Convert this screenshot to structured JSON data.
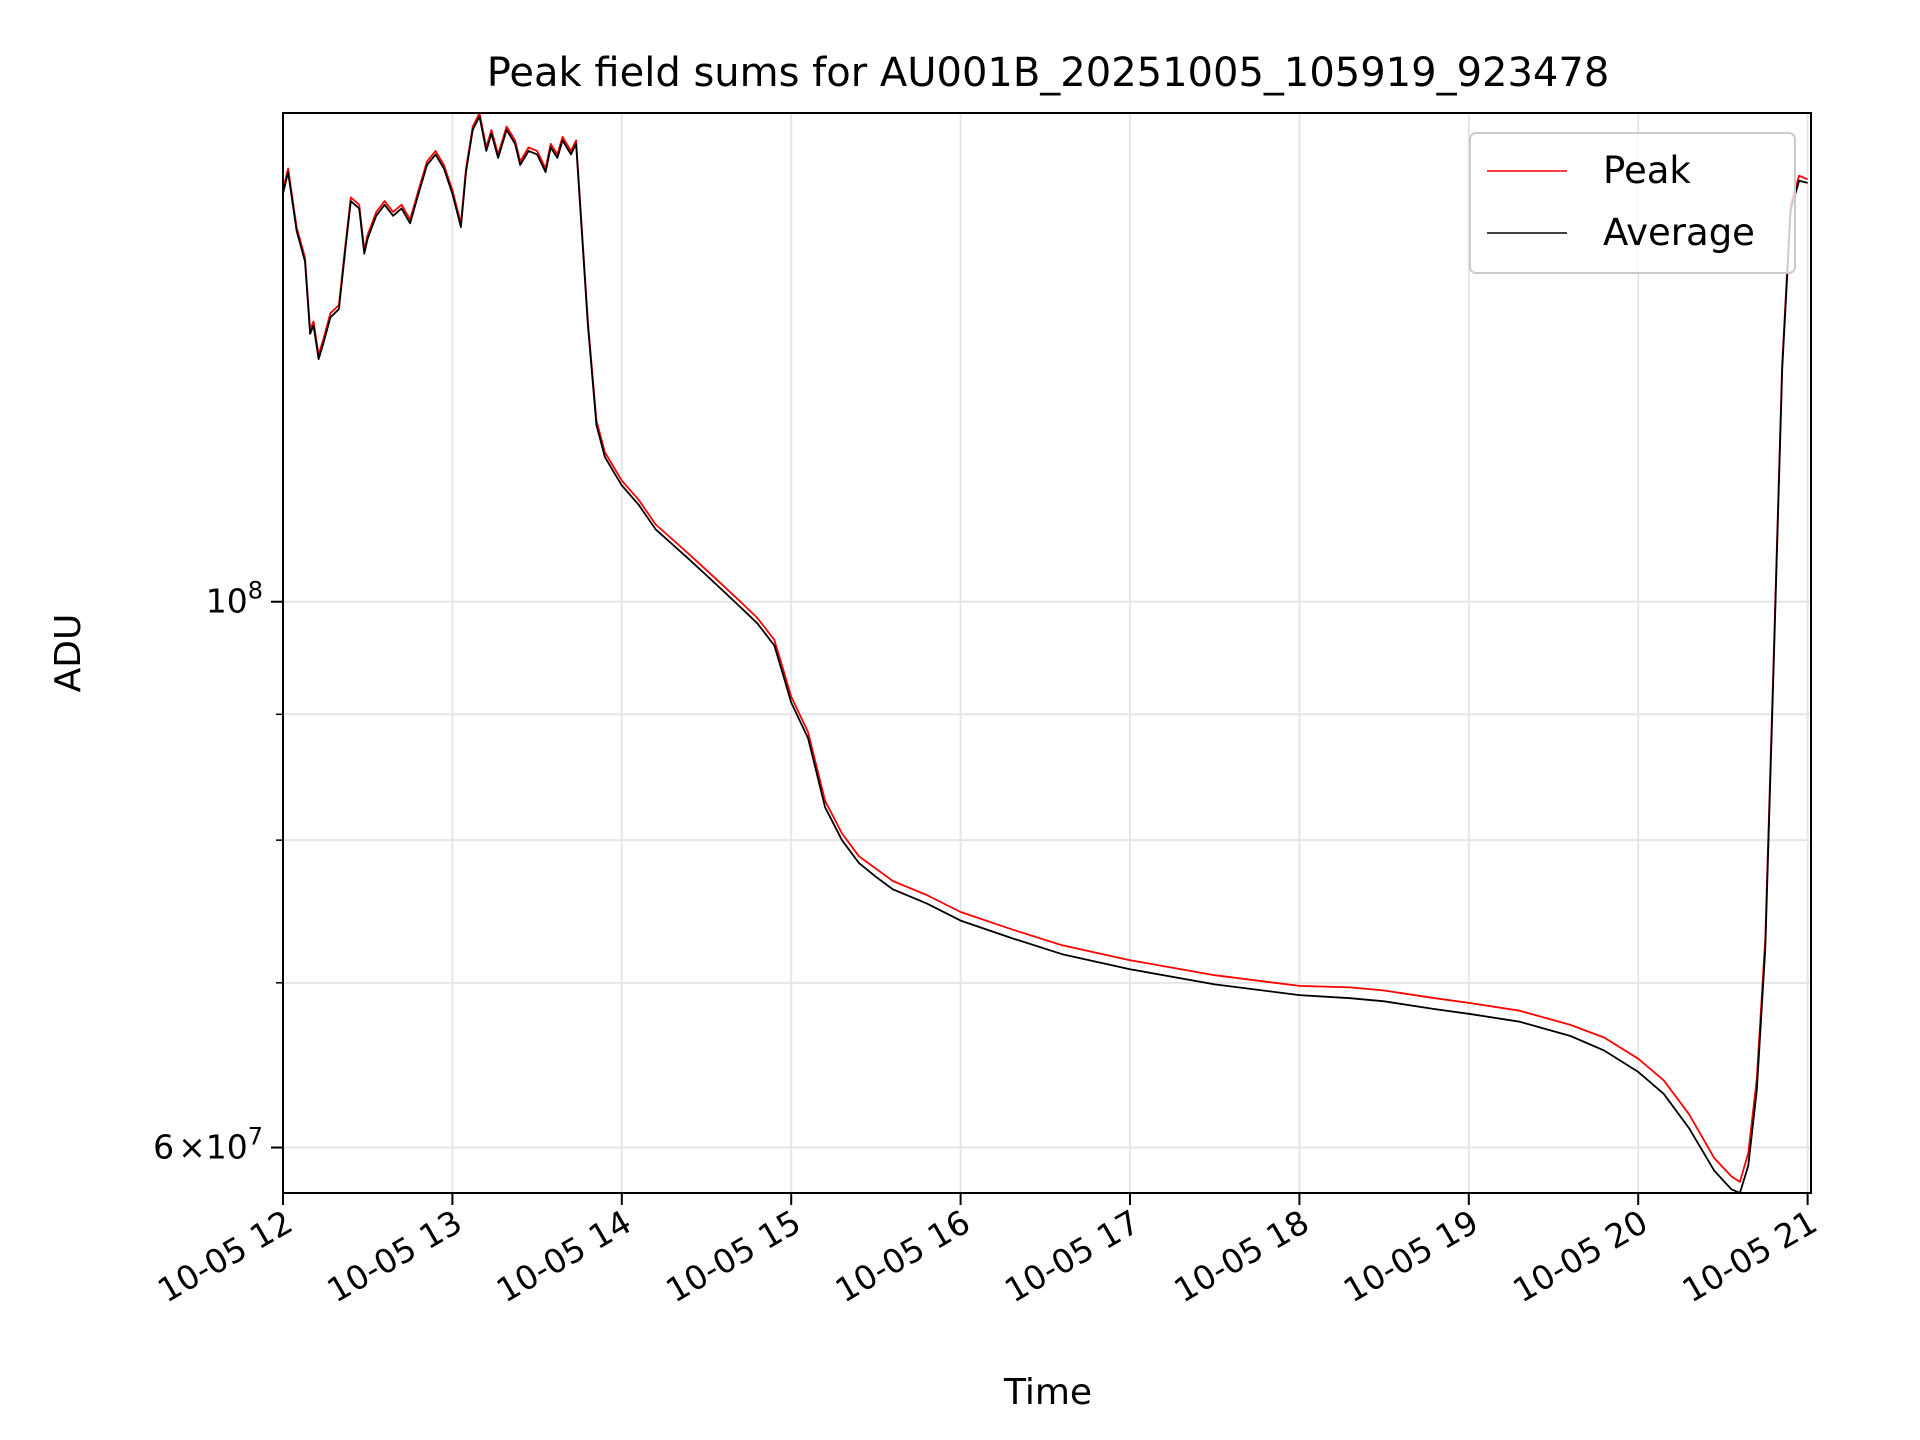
{
  "chart_data": {
    "type": "line",
    "title": "Peak field sums for AU001B_20251005_105919_923478",
    "xlabel": "Time",
    "ylabel": "ADU",
    "yscale": "log",
    "xlim": [
      12.0,
      21.02
    ],
    "ylim": [
      57500000,
      158000000
    ],
    "grid": true,
    "legend_position": "upper-right",
    "x_ticks": [
      {
        "value": 12,
        "label": "10-05 12"
      },
      {
        "value": 13,
        "label": "10-05 13"
      },
      {
        "value": 14,
        "label": "10-05 14"
      },
      {
        "value": 15,
        "label": "10-05 15"
      },
      {
        "value": 16,
        "label": "10-05 16"
      },
      {
        "value": 17,
        "label": "10-05 17"
      },
      {
        "value": 18,
        "label": "10-05 18"
      },
      {
        "value": 19,
        "label": "10-05 19"
      },
      {
        "value": 20,
        "label": "10-05 20"
      },
      {
        "value": 21,
        "label": "10-05 21"
      }
    ],
    "y_major_ticks": [
      {
        "value": 60000000,
        "mantissa": "6",
        "exponent": "7",
        "times": "×",
        "base": "10"
      },
      {
        "value": 100000000,
        "mantissa": "",
        "exponent": "8",
        "times": "",
        "base": "10"
      }
    ],
    "y_minor_ticks": [
      60000000,
      70000000,
      80000000,
      90000000,
      100000000
    ],
    "x": [
      12.0,
      12.03,
      12.08,
      12.13,
      12.16,
      12.18,
      12.21,
      12.24,
      12.28,
      12.33,
      12.37,
      12.4,
      12.45,
      12.48,
      12.5,
      12.55,
      12.6,
      12.65,
      12.7,
      12.75,
      12.8,
      12.85,
      12.9,
      12.95,
      13.0,
      13.05,
      13.08,
      13.12,
      13.16,
      13.2,
      13.23,
      13.27,
      13.32,
      13.37,
      13.4,
      13.45,
      13.5,
      13.55,
      13.58,
      13.62,
      13.65,
      13.7,
      13.73,
      13.8,
      13.85,
      13.9,
      13.95,
      14.0,
      14.1,
      14.2,
      14.3,
      14.4,
      14.5,
      14.6,
      14.7,
      14.8,
      14.9,
      14.95,
      15.0,
      15.1,
      15.2,
      15.3,
      15.4,
      15.5,
      15.6,
      15.8,
      16.0,
      16.3,
      16.6,
      17.0,
      17.5,
      18.0,
      18.3,
      18.5,
      18.8,
      19.0,
      19.3,
      19.6,
      19.8,
      20.0,
      20.15,
      20.3,
      20.45,
      20.55,
      20.6,
      20.65,
      20.7,
      20.75,
      20.8,
      20.85,
      20.9,
      20.95,
      21.0
    ],
    "series": [
      {
        "name": "Peak",
        "color": "#ff0000",
        "values": [
          147000000,
          150000000,
          142000000,
          138000000,
          129000000,
          130000000,
          126000000,
          128000000,
          131000000,
          132000000,
          140000000,
          146000000,
          145000000,
          139000000,
          141000000,
          144000000,
          145500000,
          144000000,
          145000000,
          143000000,
          147000000,
          151000000,
          152500000,
          150500000,
          147000000,
          142500000,
          150000000,
          156000000,
          158000000,
          153000000,
          155500000,
          152000000,
          156000000,
          154000000,
          151000000,
          153000000,
          152500000,
          150000000,
          153500000,
          152000000,
          154500000,
          152500000,
          154000000,
          130000000,
          118500000,
          115000000,
          113500000,
          112000000,
          110000000,
          107500000,
          106000000,
          104500000,
          103000000,
          101500000,
          100000000,
          98500000,
          96500000,
          94000000,
          91500000,
          88500000,
          83000000,
          80500000,
          78800000,
          77900000,
          77000000,
          76000000,
          74800000,
          73600000,
          72500000,
          71500000,
          70500000,
          69800000,
          69700000,
          69500000,
          69000000,
          68700000,
          68200000,
          67300000,
          66500000,
          65200000,
          63900000,
          61900000,
          59400000,
          58400000,
          58100000,
          59700000,
          64000000,
          73000000,
          95000000,
          125000000,
          145000000,
          149000000,
          148500000
        ]
      },
      {
        "name": "Average",
        "color": "#000000",
        "values": [
          146500000,
          149500000,
          141500000,
          137500000,
          128500000,
          129500000,
          125500000,
          127500000,
          130500000,
          131500000,
          139500000,
          145500000,
          144500000,
          138500000,
          140500000,
          143500000,
          145000000,
          143500000,
          144500000,
          142500000,
          146500000,
          150500000,
          152000000,
          150000000,
          146500000,
          142000000,
          149500000,
          155500000,
          157500000,
          152500000,
          155000000,
          151500000,
          155500000,
          153500000,
          150500000,
          152500000,
          152000000,
          149500000,
          153000000,
          151500000,
          154000000,
          152000000,
          153500000,
          129500000,
          118000000,
          114500000,
          113000000,
          111500000,
          109500000,
          107000000,
          105500000,
          104000000,
          102500000,
          101000000,
          99500000,
          98000000,
          96000000,
          93500000,
          91000000,
          88000000,
          82500000,
          80000000,
          78300000,
          77300000,
          76400000,
          75400000,
          74200000,
          73000000,
          71900000,
          70900000,
          69900000,
          69200000,
          69000000,
          68800000,
          68300000,
          68000000,
          67500000,
          66600000,
          65700000,
          64400000,
          63100000,
          61100000,
          58700000,
          57700000,
          57500000,
          59000000,
          63300000,
          72300000,
          94300000,
          124300000,
          144300000,
          148300000,
          148000000
        ]
      }
    ]
  }
}
